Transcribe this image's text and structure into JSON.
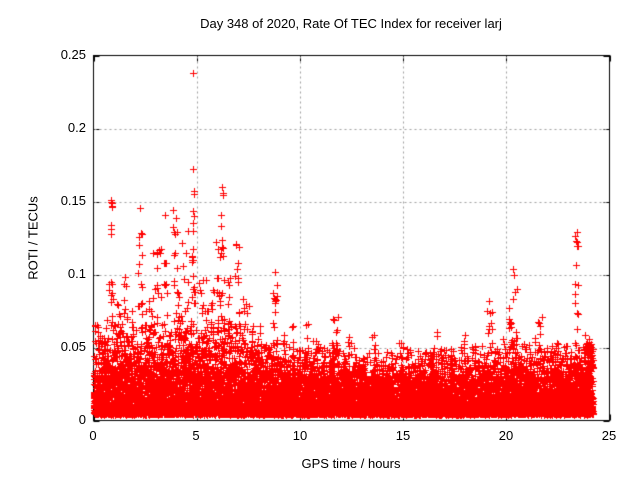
{
  "chart_data": {
    "type": "scatter",
    "title": "Day 348 of 2020, Rate Of TEC Index for receiver larj",
    "xlabel": "GPS time / hours",
    "ylabel": "ROTI / TECUs",
    "xlim": [
      0,
      25
    ],
    "ylim": [
      0,
      0.25
    ],
    "xticks": {
      "values": [
        0,
        5,
        10,
        15,
        20,
        25
      ],
      "labels": [
        "0",
        "5",
        "10",
        "15",
        "20",
        "25"
      ]
    },
    "yticks": {
      "values": [
        0,
        0.05,
        0.1,
        0.15,
        0.2,
        0.25
      ],
      "labels": [
        "0",
        "0.05",
        "0.1",
        "0.15",
        "0.2",
        "0.25"
      ]
    },
    "grid": {
      "on": true,
      "style": "dashed",
      "color": "#a0a0a0",
      "x_values": [
        5,
        10,
        15,
        20
      ],
      "y_values": [
        0.05,
        0.1,
        0.15,
        0.2
      ]
    },
    "legend": "none",
    "marker": {
      "shape": "plus",
      "color": "#ff0000",
      "size": 7
    },
    "axis_color": "#000000",
    "background": "#ffffff",
    "time_range": [
      0,
      24.2
    ],
    "synthesis": {
      "note": "dense ROTI scatter: solid noise band ~0.005-0.045 TECU all day, activity spikes mostly hours 0-9 and 19-24",
      "base": {
        "step": 0.01,
        "points_per_step": 5,
        "y_min": 0.0045,
        "power": 2.2,
        "env_jitter": [
          0.55,
          1.15
        ]
      },
      "envelope": {
        "t": [
          0,
          0.5,
          1,
          1.5,
          2,
          2.5,
          3,
          3.5,
          4,
          4.5,
          5,
          5.5,
          6,
          6.5,
          7,
          7.5,
          8,
          8.5,
          9,
          9.5,
          10,
          10.5,
          11,
          11.5,
          12,
          12.5,
          13,
          13.5,
          14,
          14.5,
          15,
          15.5,
          16,
          16.5,
          17,
          17.5,
          18,
          18.5,
          19,
          19.5,
          20,
          20.5,
          21,
          21.5,
          22,
          22.5,
          23,
          23.5,
          24,
          24.2
        ],
        "y": [
          0.052,
          0.055,
          0.06,
          0.062,
          0.06,
          0.062,
          0.063,
          0.062,
          0.063,
          0.065,
          0.063,
          0.062,
          0.065,
          0.062,
          0.06,
          0.056,
          0.054,
          0.052,
          0.046,
          0.046,
          0.047,
          0.048,
          0.046,
          0.05,
          0.046,
          0.044,
          0.043,
          0.045,
          0.042,
          0.043,
          0.04,
          0.041,
          0.043,
          0.046,
          0.043,
          0.044,
          0.045,
          0.043,
          0.049,
          0.046,
          0.05,
          0.052,
          0.048,
          0.05,
          0.047,
          0.046,
          0.048,
          0.052,
          0.056,
          0.058
        ]
      },
      "clusters": [
        {
          "t": 0.15,
          "dt": 0.1,
          "y0": 0.048,
          "y1": 0.066,
          "n": 8
        },
        {
          "t": 0.45,
          "dt": 0.08,
          "y0": 0.046,
          "y1": 0.06,
          "n": 6
        },
        {
          "t": 0.6,
          "dt": 0.05,
          "y0": 0.045,
          "y1": 0.07,
          "n": 5
        },
        {
          "t": 0.86,
          "dt": 0.1,
          "y0": 0.055,
          "y1": 0.095,
          "n": 14
        },
        {
          "t": 0.87,
          "dt": 0.05,
          "y0": 0.125,
          "y1": 0.152,
          "n": 4
        },
        {
          "t": 1.25,
          "dt": 0.15,
          "y0": 0.052,
          "y1": 0.088,
          "n": 12
        },
        {
          "t": 1.55,
          "dt": 0.08,
          "y0": 0.055,
          "y1": 0.105,
          "n": 8
        },
        {
          "t": 1.9,
          "dt": 0.06,
          "y0": 0.045,
          "y1": 0.075,
          "n": 5
        },
        {
          "t": 2.25,
          "dt": 0.1,
          "y0": 0.06,
          "y1": 0.134,
          "n": 16
        },
        {
          "t": 2.6,
          "dt": 0.12,
          "y0": 0.05,
          "y1": 0.085,
          "n": 8
        },
        {
          "t": 2.8,
          "dt": 0.06,
          "y0": 0.045,
          "y1": 0.08,
          "n": 5
        },
        {
          "t": 3.1,
          "dt": 0.22,
          "y0": 0.055,
          "y1": 0.12,
          "n": 18
        },
        {
          "t": 3.5,
          "dt": 0.1,
          "y0": 0.06,
          "y1": 0.112,
          "n": 8
        },
        {
          "t": 3.95,
          "dt": 0.12,
          "y0": 0.065,
          "y1": 0.139,
          "n": 14
        },
        {
          "t": 4.1,
          "dt": 0.06,
          "y0": 0.05,
          "y1": 0.09,
          "n": 6
        },
        {
          "t": 4.4,
          "dt": 0.18,
          "y0": 0.055,
          "y1": 0.13,
          "n": 16
        },
        {
          "t": 4.85,
          "dt": 0.08,
          "y0": 0.065,
          "y1": 0.147,
          "n": 20
        },
        {
          "t": 5.3,
          "dt": 0.18,
          "y0": 0.05,
          "y1": 0.1,
          "n": 14
        },
        {
          "t": 5.55,
          "dt": 0.06,
          "y0": 0.045,
          "y1": 0.08,
          "n": 5
        },
        {
          "t": 5.75,
          "dt": 0.1,
          "y0": 0.05,
          "y1": 0.09,
          "n": 8
        },
        {
          "t": 6.05,
          "dt": 0.12,
          "y0": 0.06,
          "y1": 0.125,
          "n": 14
        },
        {
          "t": 6.25,
          "dt": 0.1,
          "y0": 0.065,
          "y1": 0.161,
          "n": 16
        },
        {
          "t": 6.6,
          "dt": 0.1,
          "y0": 0.05,
          "y1": 0.1,
          "n": 10
        },
        {
          "t": 6.95,
          "dt": 0.12,
          "y0": 0.06,
          "y1": 0.135,
          "n": 14
        },
        {
          "t": 7.4,
          "dt": 0.15,
          "y0": 0.048,
          "y1": 0.09,
          "n": 10
        },
        {
          "t": 7.7,
          "dt": 0.08,
          "y0": 0.045,
          "y1": 0.075,
          "n": 5
        },
        {
          "t": 8.0,
          "dt": 0.1,
          "y0": 0.045,
          "y1": 0.07,
          "n": 6
        },
        {
          "t": 8.8,
          "dt": 0.12,
          "y0": 0.05,
          "y1": 0.101,
          "n": 14
        },
        {
          "t": 9.2,
          "dt": 0.06,
          "y0": 0.04,
          "y1": 0.06,
          "n": 4
        },
        {
          "t": 9.6,
          "dt": 0.1,
          "y0": 0.042,
          "y1": 0.068,
          "n": 6
        },
        {
          "t": 10.35,
          "dt": 0.15,
          "y0": 0.042,
          "y1": 0.068,
          "n": 8
        },
        {
          "t": 10.8,
          "dt": 0.08,
          "y0": 0.04,
          "y1": 0.055,
          "n": 5
        },
        {
          "t": 11.7,
          "dt": 0.18,
          "y0": 0.042,
          "y1": 0.073,
          "n": 12
        },
        {
          "t": 12.4,
          "dt": 0.1,
          "y0": 0.04,
          "y1": 0.058,
          "n": 6
        },
        {
          "t": 13.6,
          "dt": 0.12,
          "y0": 0.04,
          "y1": 0.059,
          "n": 7
        },
        {
          "t": 14.9,
          "dt": 0.1,
          "y0": 0.038,
          "y1": 0.054,
          "n": 5
        },
        {
          "t": 15.3,
          "dt": 0.1,
          "y0": 0.036,
          "y1": 0.05,
          "n": 5
        },
        {
          "t": 16.6,
          "dt": 0.2,
          "y0": 0.04,
          "y1": 0.061,
          "n": 8
        },
        {
          "t": 17.95,
          "dt": 0.15,
          "y0": 0.04,
          "y1": 0.062,
          "n": 8
        },
        {
          "t": 18.4,
          "dt": 0.1,
          "y0": 0.04,
          "y1": 0.052,
          "n": 5
        },
        {
          "t": 19.15,
          "dt": 0.2,
          "y0": 0.045,
          "y1": 0.083,
          "n": 12
        },
        {
          "t": 20.35,
          "dt": 0.22,
          "y0": 0.048,
          "y1": 0.093,
          "n": 18
        },
        {
          "t": 21.55,
          "dt": 0.2,
          "y0": 0.042,
          "y1": 0.071,
          "n": 10
        },
        {
          "t": 22.35,
          "dt": 0.15,
          "y0": 0.04,
          "y1": 0.063,
          "n": 8
        },
        {
          "t": 23.4,
          "dt": 0.07,
          "y0": 0.052,
          "y1": 0.129,
          "n": 13
        },
        {
          "t": 23.95,
          "dt": 0.25,
          "y0": 0.008,
          "y1": 0.055,
          "n": 80
        }
      ],
      "outliers": [
        [
          4.84,
          0.238
        ],
        [
          4.84,
          0.172
        ],
        [
          4.85,
          0.157
        ],
        [
          4.89,
          0.155
        ],
        [
          6.22,
          0.16
        ],
        [
          6.27,
          0.156
        ],
        [
          2.26,
          0.1455
        ],
        [
          3.87,
          0.144
        ],
        [
          3.47,
          0.141
        ],
        [
          0.86,
          0.151
        ],
        [
          0.88,
          0.146
        ],
        [
          0.85,
          0.131
        ],
        [
          0.86,
          0.128
        ],
        [
          23.42,
          0.129
        ],
        [
          23.4,
          0.123
        ],
        [
          20.32,
          0.104
        ],
        [
          20.36,
          0.1
        ],
        [
          8.78,
          0.102
        ]
      ]
    }
  }
}
